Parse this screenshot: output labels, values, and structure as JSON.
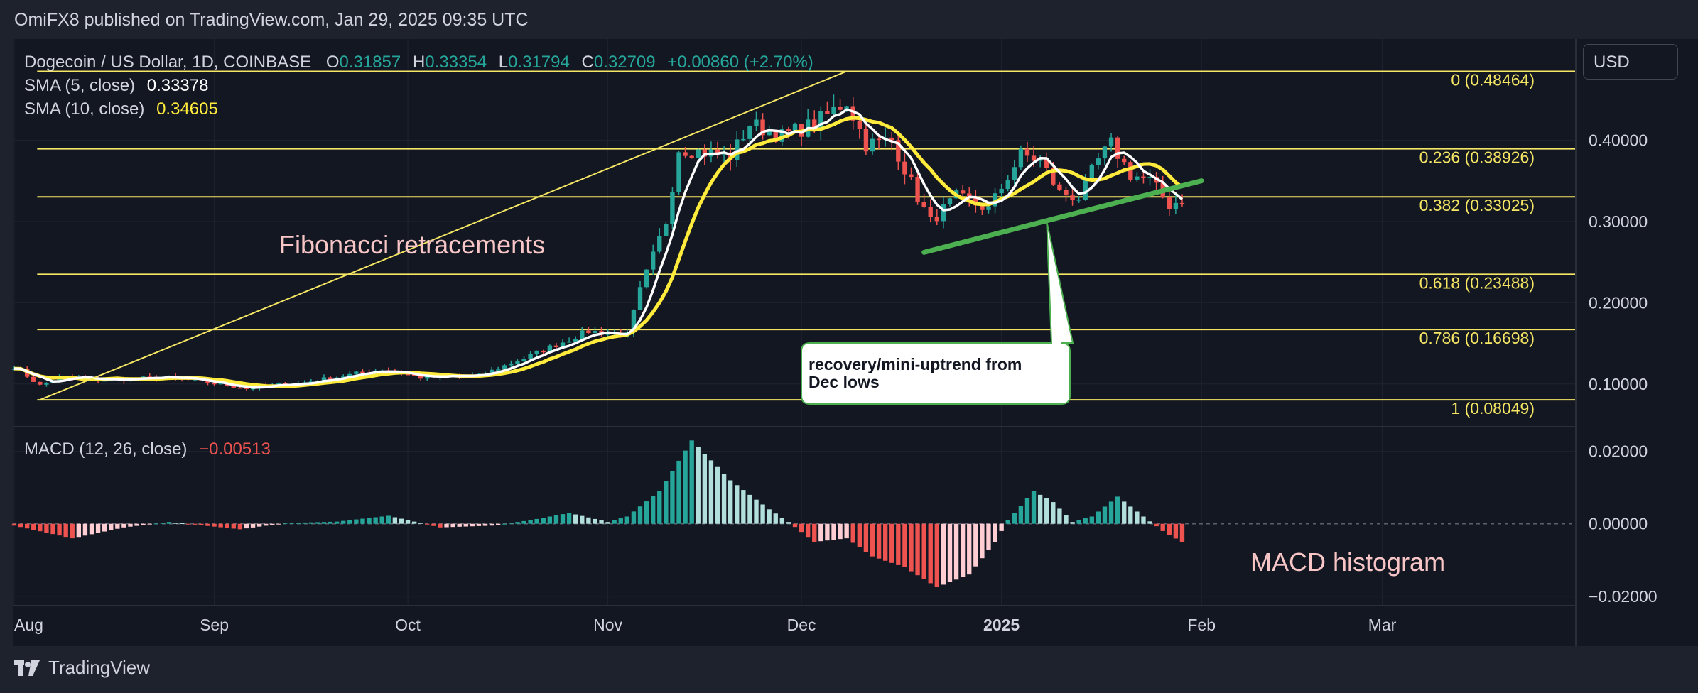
{
  "header": {
    "publisher": "OmiFX8 published on TradingView.com, Jan 29, 2025 09:35 UTC"
  },
  "currency_button": "USD",
  "footer": {
    "brand": "TradingView"
  },
  "legend": {
    "symbol": "Dogecoin / US Dollar, 1D, COINBASE",
    "o_label": "O",
    "o_value": "0.31857",
    "h_label": "H",
    "h_value": "0.33354",
    "l_label": "L",
    "l_value": "0.31794",
    "c_label": "C",
    "c_value": "0.32709",
    "change": "+0.00860 (+2.70%)",
    "sma5_label": "SMA (5, close)",
    "sma5_value": "0.33378",
    "sma10_label": "SMA (10, close)",
    "sma10_value": "0.34605",
    "macd_label": "MACD (12, 26, close)",
    "macd_value": "−0.00513"
  },
  "annotations": {
    "fibonacci": "Fibonacci retracements",
    "macd_histogram": "MACD histogram",
    "callout_line1": "recovery/mini-uptrend from",
    "callout_line2": "Dec lows"
  },
  "colors": {
    "bg": "#131722",
    "up": "#26a69a",
    "down": "#ef5350",
    "up_light": "#b2dfdb",
    "down_light": "#ffcdd2",
    "sma5": "#ffffff",
    "sma10": "#ffeb3b",
    "fib": "#f5e663",
    "trend": "#4caf50",
    "annotation": "#f8c6c6"
  },
  "chart_data": [
    {
      "type": "candlestick",
      "ylim": [
        0.05,
        0.52
      ],
      "yticks": [
        "0.40000",
        "0.30000",
        "0.20000",
        "0.10000"
      ],
      "ytick_values": [
        0.4,
        0.3,
        0.2,
        0.1
      ],
      "x_labels": [
        "Aug",
        "Sep",
        "Oct",
        "Nov",
        "Dec",
        "2025",
        "Feb",
        "Mar"
      ],
      "x_label_dates": [
        "2024-08-01",
        "2024-09-01",
        "2024-10-01",
        "2024-11-01",
        "2024-12-01",
        "2025-01-01",
        "2025-02-01",
        "2025-03-01"
      ],
      "x_range": [
        "2024-08-01",
        "2025-03-31"
      ],
      "fib_levels": [
        {
          "ratio": "0",
          "value": 0.48464,
          "label": "0 (0.48464)"
        },
        {
          "ratio": "0.236",
          "value": 0.38926,
          "label": "0.236 (0.38926)"
        },
        {
          "ratio": "0.382",
          "value": 0.33025,
          "label": "0.382 (0.33025)"
        },
        {
          "ratio": "0.618",
          "value": 0.23488,
          "label": "0.618 (0.23488)"
        },
        {
          "ratio": "0.786",
          "value": 0.16698,
          "label": "0.786 (0.16698)"
        },
        {
          "ratio": "1",
          "value": 0.08049,
          "label": "1 (0.08049)"
        }
      ],
      "fib_start": "2024-08-05",
      "fib_end": "2024-12-08",
      "trendline": [
        [
          "2024-12-20",
          0.262
        ],
        [
          "2025-02-01",
          0.35
        ]
      ],
      "callout_point": [
        "2025-01-08",
        0.3
      ],
      "close_keypoints": [
        [
          "2024-08-01",
          0.122
        ],
        [
          "2024-08-05",
          0.098
        ],
        [
          "2024-08-08",
          0.108
        ],
        [
          "2024-08-15",
          0.105
        ],
        [
          "2024-08-25",
          0.108
        ],
        [
          "2024-09-06",
          0.095
        ],
        [
          "2024-09-15",
          0.102
        ],
        [
          "2024-09-27",
          0.118
        ],
        [
          "2024-10-03",
          0.108
        ],
        [
          "2024-10-12",
          0.11
        ],
        [
          "2024-10-20",
          0.135
        ],
        [
          "2024-10-29",
          0.165
        ],
        [
          "2024-11-04",
          0.16
        ],
        [
          "2024-11-06",
          0.215
        ],
        [
          "2024-11-10",
          0.3
        ],
        [
          "2024-11-12",
          0.39
        ],
        [
          "2024-11-20",
          0.38
        ],
        [
          "2024-11-23",
          0.42
        ],
        [
          "2024-11-28",
          0.405
        ],
        [
          "2024-12-03",
          0.42
        ],
        [
          "2024-12-08",
          0.448
        ],
        [
          "2024-12-11",
          0.395
        ],
        [
          "2024-12-15",
          0.4
        ],
        [
          "2024-12-19",
          0.33
        ],
        [
          "2024-12-21",
          0.3
        ],
        [
          "2024-12-25",
          0.33
        ],
        [
          "2024-12-30",
          0.315
        ],
        [
          "2025-01-04",
          0.382
        ],
        [
          "2025-01-07",
          0.375
        ],
        [
          "2025-01-10",
          0.335
        ],
        [
          "2025-01-13",
          0.33
        ],
        [
          "2025-01-16",
          0.375
        ],
        [
          "2025-01-18",
          0.395
        ],
        [
          "2025-01-21",
          0.358
        ],
        [
          "2025-01-24",
          0.35
        ],
        [
          "2025-01-27",
          0.32
        ],
        [
          "2025-01-29",
          0.327
        ]
      ],
      "series": [
        {
          "name": "SMA (5, close)"
        },
        {
          "name": "SMA (10, close)"
        }
      ]
    },
    {
      "type": "histogram",
      "ylim": [
        -0.022,
        0.026
      ],
      "yticks": [
        "0.02000",
        "0.00000",
        "−0.02000"
      ],
      "ytick_values": [
        0.02,
        0.0,
        -0.02
      ],
      "macd_keypoints": [
        [
          "2024-08-01",
          -0.0005
        ],
        [
          "2024-08-10",
          -0.004
        ],
        [
          "2024-08-18",
          -0.001
        ],
        [
          "2024-08-25",
          0.0005
        ],
        [
          "2024-09-05",
          -0.0015
        ],
        [
          "2024-09-12",
          0.0002
        ],
        [
          "2024-09-20",
          0.0006
        ],
        [
          "2024-09-28",
          0.0022
        ],
        [
          "2024-10-06",
          -0.001
        ],
        [
          "2024-10-14",
          -0.0005
        ],
        [
          "2024-10-20",
          0.001
        ],
        [
          "2024-10-26",
          0.003
        ],
        [
          "2024-11-01",
          0.0005
        ],
        [
          "2024-11-04",
          0.002
        ],
        [
          "2024-11-09",
          0.009
        ],
        [
          "2024-11-14",
          0.023
        ],
        [
          "2024-11-20",
          0.012
        ],
        [
          "2024-11-26",
          0.004
        ],
        [
          "2024-11-29",
          0.0005
        ],
        [
          "2024-12-03",
          -0.005
        ],
        [
          "2024-12-08",
          -0.004
        ],
        [
          "2024-12-12",
          -0.009
        ],
        [
          "2024-12-17",
          -0.012
        ],
        [
          "2024-12-22",
          -0.0175
        ],
        [
          "2024-12-27",
          -0.014
        ],
        [
          "2024-12-31",
          -0.005
        ],
        [
          "2025-01-02",
          0.001
        ],
        [
          "2025-01-06",
          0.009
        ],
        [
          "2025-01-09",
          0.006
        ],
        [
          "2025-01-12",
          0.0005
        ],
        [
          "2025-01-15",
          0.002
        ],
        [
          "2025-01-19",
          0.0075
        ],
        [
          "2025-01-23",
          0.002
        ],
        [
          "2025-01-26",
          -0.002
        ],
        [
          "2025-01-29",
          -0.0051
        ]
      ]
    }
  ]
}
